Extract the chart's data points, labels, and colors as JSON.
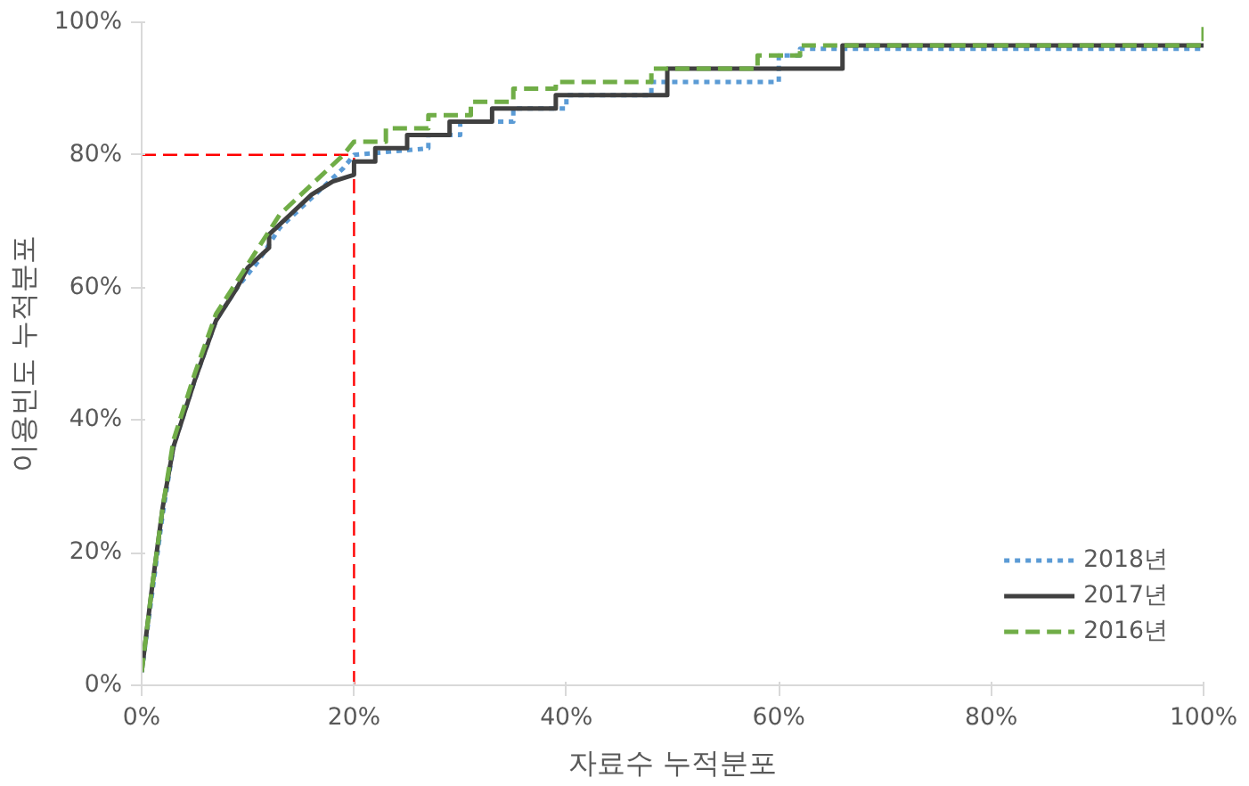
{
  "chart_data": {
    "type": "line",
    "xlabel": "자료수 누적분포",
    "ylabel": "이용빈도 누적분포",
    "xlim": [
      0,
      100
    ],
    "ylim": [
      0,
      100
    ],
    "xticks": [
      {
        "value": 0,
        "label": "0%"
      },
      {
        "value": 20,
        "label": "20%"
      },
      {
        "value": 40,
        "label": "40%"
      },
      {
        "value": 60,
        "label": "60%"
      },
      {
        "value": 80,
        "label": "80%"
      },
      {
        "value": 100,
        "label": "100%"
      }
    ],
    "yticks": [
      {
        "value": 0,
        "label": "0%"
      },
      {
        "value": 20,
        "label": "20%"
      },
      {
        "value": 40,
        "label": "40%"
      },
      {
        "value": 60,
        "label": "60%"
      },
      {
        "value": 80,
        "label": "80%"
      },
      {
        "value": 100,
        "label": "100%"
      }
    ],
    "grid": false,
    "legend": "bottom right",
    "marker": "none",
    "series": [
      {
        "name": "2018년",
        "color": "#5b9bd5",
        "line_style": "dotted",
        "x": [
          0,
          1,
          2,
          3,
          5,
          7,
          9,
          11,
          13,
          15,
          17,
          19,
          20,
          27,
          27,
          30,
          30,
          35,
          35,
          40,
          40,
          48,
          48,
          60,
          60,
          62,
          62,
          100
        ],
        "values": [
          2,
          14,
          26,
          36,
          46,
          55,
          60,
          64,
          69,
          72,
          75,
          78,
          80,
          81,
          83,
          83,
          85,
          85,
          87,
          87,
          89,
          89,
          91,
          91,
          95,
          95,
          96,
          96
        ]
      },
      {
        "name": "2017년",
        "color": "#404040",
        "line_style": "solid",
        "x": [
          0,
          1,
          2,
          3,
          5,
          7,
          9,
          10,
          12,
          12,
          14,
          16,
          18,
          20,
          20,
          22,
          22,
          25,
          25,
          29,
          29,
          33,
          33,
          39,
          39,
          49.5,
          49.5,
          66,
          66,
          100
        ],
        "values": [
          2,
          15,
          27,
          36,
          46,
          55,
          60,
          63,
          66,
          68,
          71,
          74,
          76,
          77,
          79,
          79,
          81,
          81,
          83,
          83,
          85,
          85,
          87,
          87,
          89,
          89,
          93,
          93,
          96.5,
          96.5
        ]
      },
      {
        "name": "2016년",
        "color": "#70ad47",
        "line_style": "dashed",
        "x": [
          0,
          1,
          2,
          3,
          5,
          7,
          9,
          11,
          13,
          15,
          17,
          19,
          20,
          23,
          23,
          27,
          27,
          31,
          31,
          35,
          35,
          39,
          39,
          48,
          48,
          58,
          58,
          62,
          62,
          100,
          100
        ],
        "values": [
          2,
          15,
          27,
          37,
          47,
          56,
          61,
          66,
          71,
          74,
          77,
          80,
          82,
          82,
          84,
          84,
          86,
          86,
          88,
          88,
          90,
          90,
          91,
          91,
          93,
          93,
          95,
          95,
          96.5,
          96.5,
          100
        ]
      }
    ],
    "ref_lines": [
      {
        "axis": "x",
        "value": 20,
        "color": "#ff0000",
        "line_style": "dashed"
      },
      {
        "axis": "y",
        "value": 80,
        "color": "#ff0000",
        "line_style": "dashed"
      }
    ]
  }
}
